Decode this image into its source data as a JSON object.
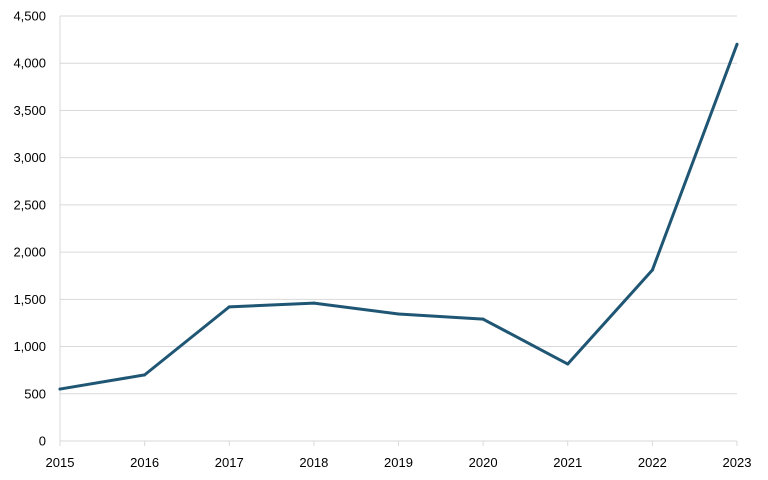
{
  "chart_data": {
    "type": "line",
    "title": "",
    "xlabel": "",
    "ylabel": "",
    "categories": [
      "2015",
      "2016",
      "2017",
      "2018",
      "2019",
      "2020",
      "2021",
      "2022",
      "2023"
    ],
    "series": [
      {
        "values": [
          550,
          700,
          1420,
          1460,
          1345,
          1290,
          815,
          1810,
          4200
        ],
        "color": "#1f5674"
      }
    ],
    "ylim": [
      0,
      4500
    ],
    "yticks": [
      0,
      500,
      1000,
      1500,
      2000,
      2500,
      3000,
      3500,
      4000,
      4500
    ],
    "ytick_labels": [
      "0",
      "500",
      "1,000",
      "1,500",
      "2,000",
      "2,500",
      "3,000",
      "3,500",
      "4,000",
      "4,500"
    ],
    "grid": true,
    "legend": "none"
  }
}
